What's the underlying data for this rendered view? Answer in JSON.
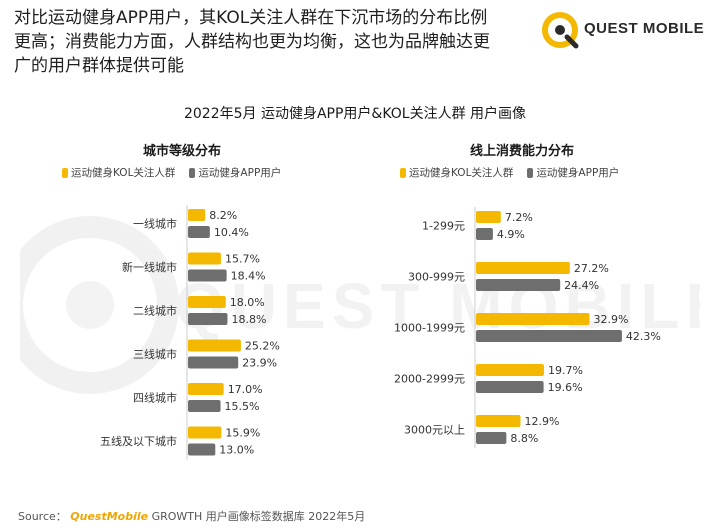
{
  "headline": {
    "line1": "对比运动健身APP用户，其KOL关注人群在下沉市场的分布比例",
    "line2": "更高；消费能力方面，人群结构也更为均衡，这也为品牌触达更",
    "line3": "广的用户群体提供可能"
  },
  "logo": {
    "text": "QUEST MOBILE"
  },
  "watermark": {
    "text": "QUEST MOBILE"
  },
  "colors": {
    "kol": "#f5b800",
    "app": "#6e6e6e"
  },
  "chart_title": "2022年5月 运动健身APP用户&KOL关注人群 用户画像",
  "source": {
    "prefix": "Source：",
    "brand": "QuestMobile",
    "rest": "GROWTH 用户画像标签数据库 2022年5月"
  },
  "chart_data": [
    {
      "type": "bar",
      "title": "城市等级分布",
      "categories": [
        "一线城市",
        "新一线城市",
        "二线城市",
        "三线城市",
        "四线城市",
        "五线及以下城市"
      ],
      "series": [
        {
          "name": "运动健身KOL关注人群",
          "values": [
            8.2,
            15.7,
            18.0,
            25.2,
            17.0,
            15.9
          ],
          "labels": [
            "8.2%",
            "15.7%",
            "18.0%",
            "25.2%",
            "17.0%",
            "15.9%"
          ]
        },
        {
          "name": "运动健身APP用户",
          "values": [
            10.4,
            18.4,
            18.8,
            23.9,
            15.5,
            13.0
          ],
          "labels": [
            "10.4%",
            "18.4%",
            "18.8%",
            "23.9%",
            "15.5%",
            "13.0%"
          ]
        }
      ]
    },
    {
      "type": "bar",
      "title": "线上消费能力分布",
      "categories": [
        "1-299元",
        "300-999元",
        "1000-1999元",
        "2000-2999元",
        "3000元以上"
      ],
      "series": [
        {
          "name": "运动健身KOL关注人群",
          "values": [
            7.2,
            27.2,
            32.9,
            19.7,
            12.9
          ],
          "labels": [
            "7.2%",
            "27.2%",
            "32.9%",
            "19.7%",
            "12.9%"
          ]
        },
        {
          "name": "运动健身APP用户",
          "values": [
            4.9,
            24.4,
            42.3,
            19.6,
            8.8
          ],
          "labels": [
            "4.9%",
            "24.4%",
            "42.3%",
            "19.6%",
            "8.8%"
          ]
        }
      ]
    }
  ]
}
